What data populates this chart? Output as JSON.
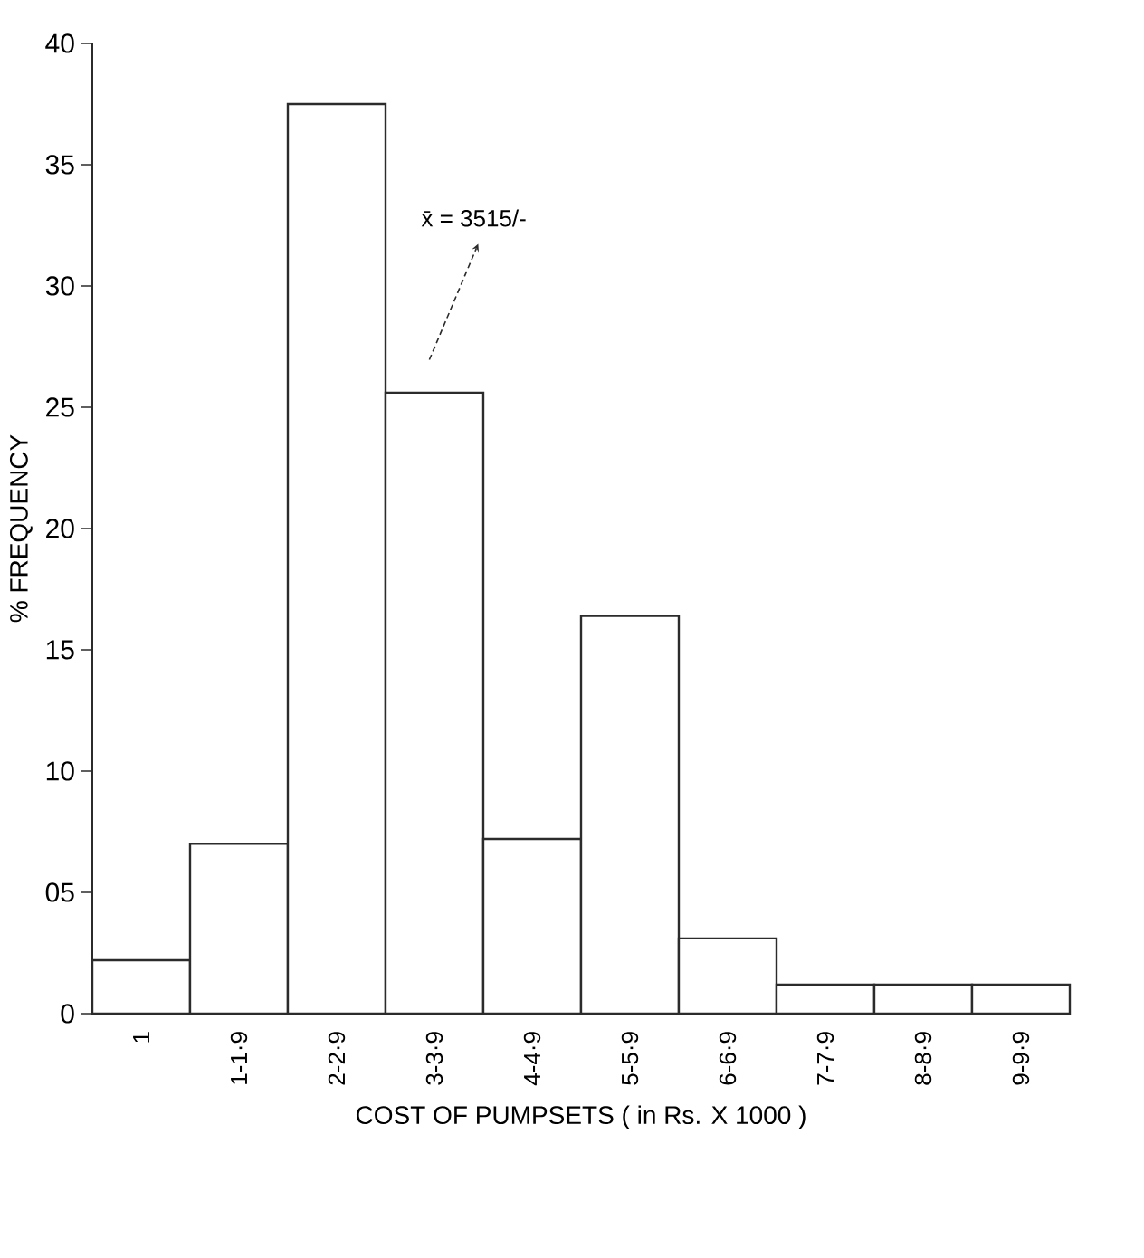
{
  "chart_data": {
    "type": "bar",
    "xlabel": "COST OF PUMPSETS ( in Rs. X 1000 )",
    "ylabel": "% FREQUENCY",
    "categories": [
      "1",
      "1-1·9",
      "2-2·9",
      "3-3·9",
      "4-4·9",
      "5-5·9",
      "6-6·9",
      "7-7·9",
      "8-8·9",
      "9-9·9"
    ],
    "values": [
      2.2,
      7.0,
      37.5,
      25.6,
      7.2,
      16.4,
      3.1,
      1.2,
      1.2,
      1.2
    ],
    "color": "#2b2b2b",
    "ylim": [
      0,
      40
    ],
    "yticks": [
      0,
      {
        "value": 5,
        "label": "05"
      },
      10,
      15,
      20,
      25,
      30,
      35,
      40
    ],
    "grid": false,
    "annotations": [
      "x̄ = 3515/-"
    ]
  }
}
